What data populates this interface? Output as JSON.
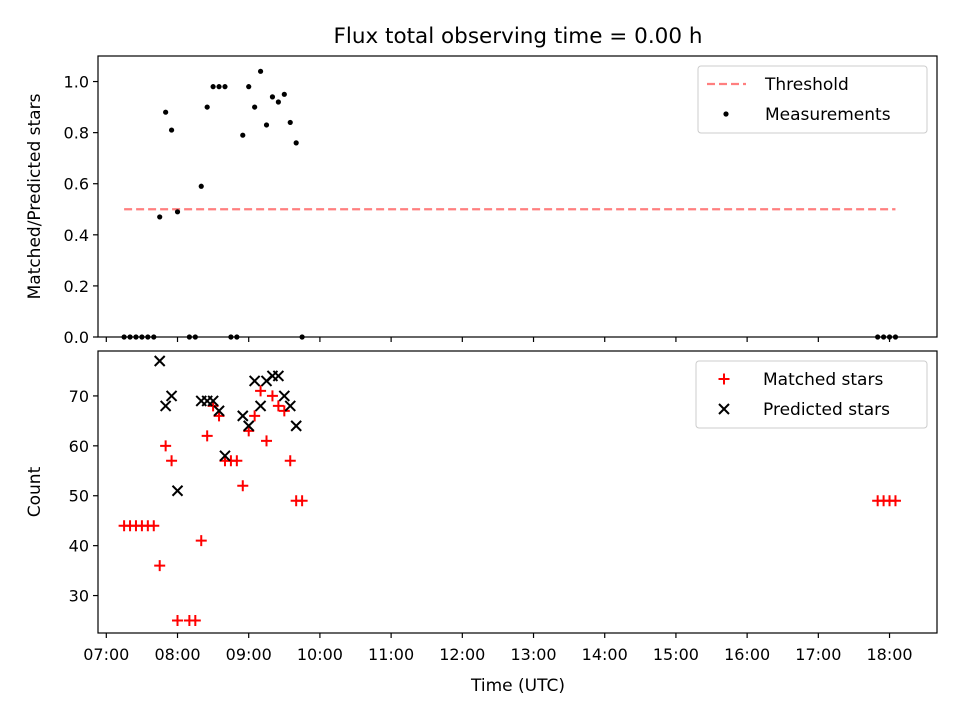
{
  "title": "Flux total observing time = 0.00 h",
  "xlabel": "Time (UTC)",
  "chart_data": [
    {
      "type": "scatter",
      "ylabel": "Matched/Predicted stars",
      "xlim": [
        "06:53",
        "18:40"
      ],
      "ylim": [
        0.0,
        1.1
      ],
      "yticks": [
        0.0,
        0.2,
        0.4,
        0.6,
        0.8,
        1.0
      ],
      "yticklabels": [
        "0.0",
        "0.2",
        "0.4",
        "0.6",
        "0.8",
        "1.0"
      ],
      "legend": "top-right",
      "series": [
        {
          "name": "Threshold",
          "style": "dashed-line",
          "color": "#ff7f7f",
          "x": [
            "07:15",
            "18:05"
          ],
          "y": [
            0.5,
            0.5
          ]
        },
        {
          "name": "Measurements",
          "style": "dot",
          "color": "#000000",
          "x": [
            "07:15",
            "07:20",
            "07:25",
            "07:30",
            "07:35",
            "07:40",
            "07:45",
            "07:50",
            "07:55",
            "08:00",
            "08:10",
            "08:15",
            "08:20",
            "08:25",
            "08:30",
            "08:35",
            "08:40",
            "08:45",
            "08:50",
            "08:55",
            "09:00",
            "09:05",
            "09:10",
            "09:15",
            "09:20",
            "09:25",
            "09:30",
            "09:35",
            "09:40",
            "09:45",
            "17:50",
            "17:55",
            "18:00",
            "18:05"
          ],
          "y": [
            0.0,
            0.0,
            0.0,
            0.0,
            0.0,
            0.0,
            0.47,
            0.88,
            0.81,
            0.49,
            0.0,
            0.0,
            0.59,
            0.9,
            0.98,
            0.98,
            0.98,
            0.0,
            0.0,
            0.79,
            0.98,
            0.9,
            1.04,
            0.83,
            0.94,
            0.92,
            0.95,
            0.84,
            0.76,
            0.0,
            0.0,
            0.0,
            0.0,
            0.0
          ]
        }
      ]
    },
    {
      "type": "scatter",
      "ylabel": "Count",
      "xlim": [
        "06:53",
        "18:40"
      ],
      "ylim": [
        22.5,
        79.0
      ],
      "yticks": [
        30,
        40,
        50,
        60,
        70
      ],
      "yticklabels": [
        "30",
        "40",
        "50",
        "60",
        "70"
      ],
      "xticks": [
        "07:00",
        "08:00",
        "09:00",
        "10:00",
        "11:00",
        "12:00",
        "13:00",
        "14:00",
        "15:00",
        "16:00",
        "17:00",
        "18:00"
      ],
      "xticklabels": [
        "07:00",
        "08:00",
        "09:00",
        "10:00",
        "11:00",
        "12:00",
        "13:00",
        "14:00",
        "15:00",
        "16:00",
        "17:00",
        "18:00"
      ],
      "legend": "top-right",
      "series": [
        {
          "name": "Matched stars",
          "style": "plus",
          "color": "#ff0000",
          "x": [
            "07:15",
            "07:20",
            "07:25",
            "07:30",
            "07:35",
            "07:40",
            "07:45",
            "07:50",
            "07:55",
            "08:00",
            "08:10",
            "08:15",
            "08:20",
            "08:25",
            "08:30",
            "08:35",
            "08:40",
            "08:45",
            "08:50",
            "08:55",
            "09:00",
            "09:05",
            "09:10",
            "09:15",
            "09:20",
            "09:25",
            "09:30",
            "09:35",
            "09:40",
            "09:45",
            "17:50",
            "17:55",
            "18:00",
            "18:05"
          ],
          "y": [
            44,
            44,
            44,
            44,
            44,
            44,
            36,
            60,
            57,
            25,
            25,
            25,
            41,
            62,
            68,
            66,
            57,
            57,
            57,
            52,
            63,
            66,
            71,
            61,
            70,
            68,
            67,
            57,
            49,
            49,
            49,
            49,
            49,
            49
          ]
        },
        {
          "name": "Predicted stars",
          "style": "x",
          "color": "#000000",
          "x": [
            "07:45",
            "07:50",
            "07:55",
            "08:00",
            "08:20",
            "08:25",
            "08:30",
            "08:35",
            "08:40",
            "08:55",
            "09:00",
            "09:05",
            "09:10",
            "09:15",
            "09:20",
            "09:25",
            "09:30",
            "09:35",
            "09:40"
          ],
          "y": [
            77,
            68,
            70,
            51,
            69,
            69,
            69,
            67,
            58,
            66,
            64,
            73,
            68,
            73,
            74,
            74,
            70,
            68,
            64
          ]
        }
      ]
    }
  ]
}
